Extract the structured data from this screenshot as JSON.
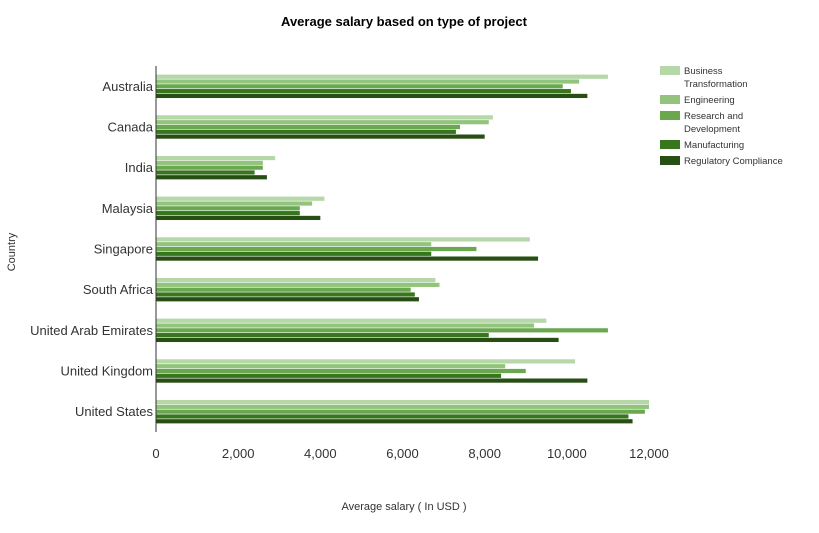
{
  "chart_data": {
    "type": "bar",
    "orientation": "horizontal",
    "title": "Average salary based on type of project",
    "xlabel": "Average salary ( In USD )",
    "ylabel": "Country",
    "xlim": [
      0,
      12000
    ],
    "xticks": [
      "0",
      "2,000",
      "4,000",
      "6,000",
      "8,000",
      "10,000",
      "12,000"
    ],
    "grid": false,
    "legend_position": "top-right",
    "categories": [
      "Australia",
      "Canada",
      "India",
      "Malaysia",
      "Singapore",
      "South Africa",
      "United Arab Emirates",
      "United Kingdom",
      "United States"
    ],
    "series": [
      {
        "name": "Business Transformation",
        "color": "#b6d7a8",
        "values": [
          11000,
          8200,
          2900,
          4100,
          9100,
          6800,
          9500,
          10200,
          12000
        ]
      },
      {
        "name": "Engineering",
        "color": "#93c47d",
        "values": [
          10300,
          8100,
          2600,
          3800,
          6700,
          6900,
          9200,
          8500,
          12000
        ]
      },
      {
        "name": "Research and Development",
        "color": "#6aa84f",
        "values": [
          9900,
          7400,
          2600,
          3500,
          7800,
          6200,
          11000,
          9000,
          11900
        ]
      },
      {
        "name": "Manufacturing",
        "color": "#38761d",
        "values": [
          10100,
          7300,
          2400,
          3500,
          6700,
          6300,
          8100,
          8400,
          11500
        ]
      },
      {
        "name": "Regulatory Compliance",
        "color": "#274e13",
        "values": [
          10500,
          8000,
          2700,
          4000,
          9300,
          6400,
          9800,
          10500,
          11600
        ]
      }
    ]
  }
}
